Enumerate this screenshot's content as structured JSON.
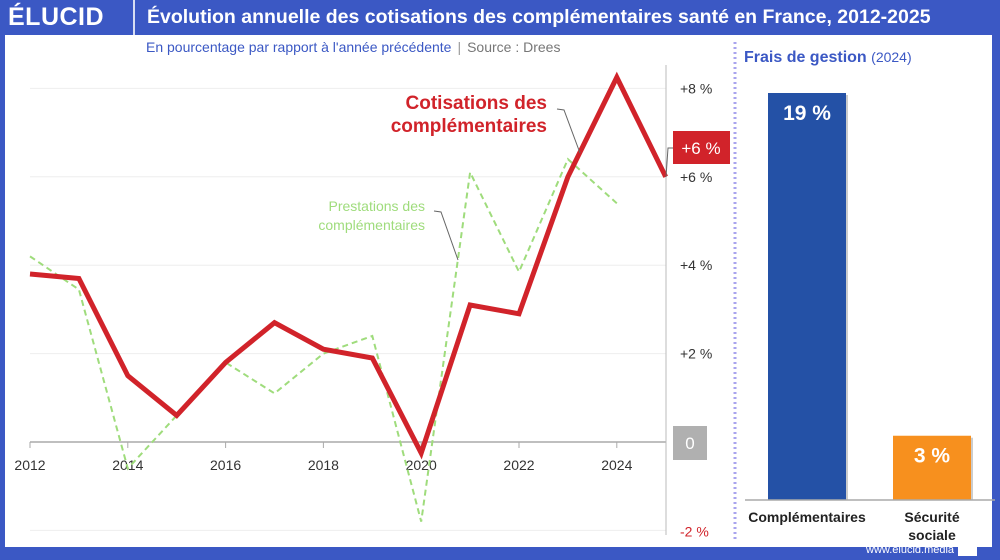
{
  "header": {
    "logo": "ÉLUCID",
    "title": "Évolution annuelle des cotisations des complémentaires santé en France, 2012-2025"
  },
  "subtitle": "En pourcentage par rapport à l'année précédente",
  "source": "Source : Drees",
  "colors": {
    "brand": "#3b58c4",
    "cotisations": "#d1232a",
    "prestations": "#9fdc7c",
    "complementaires_bar": "#2451a6",
    "securite_bar": "#f7901e",
    "zero_badge": "#b0b0b0"
  },
  "chart_data": [
    {
      "type": "line",
      "x": [
        2012,
        2013,
        2014,
        2015,
        2016,
        2017,
        2018,
        2019,
        2020,
        2021,
        2022,
        2023,
        2024,
        2025
      ],
      "x_tick_labels": [
        "2012",
        "2014",
        "2016",
        "2018",
        "2020",
        "2022",
        "2024"
      ],
      "y_tick_labels": [
        "+8 %",
        "+6 %",
        "+4 %",
        "+2 %",
        "0",
        "-2 %"
      ],
      "ylim": [
        -2,
        8.5
      ],
      "y_axis_side": "right",
      "grid": true,
      "series": [
        {
          "name": "Cotisations des complémentaires",
          "style": "solid",
          "values": [
            3.8,
            3.7,
            1.5,
            0.6,
            1.8,
            2.7,
            2.1,
            1.9,
            -0.25,
            3.1,
            2.9,
            6.0,
            8.25,
            6.0
          ]
        },
        {
          "name": "Prestations des complémentaires",
          "style": "dashed",
          "values": [
            4.2,
            3.45,
            -0.6,
            0.6,
            1.8,
            1.1,
            2.0,
            2.4,
            -1.8,
            6.1,
            3.85,
            6.4,
            5.4,
            null
          ]
        }
      ],
      "annotations": {
        "last_value": "+6 %"
      }
    },
    {
      "type": "bar",
      "title": "Frais de gestion",
      "title_note": "(2024)",
      "categories": [
        "Complémentaires",
        "Sécurité sociale"
      ],
      "values": [
        19,
        3
      ],
      "data_labels": [
        "19 %",
        "3 %"
      ]
    }
  ],
  "footer": {
    "url": "www.elucid.media"
  }
}
